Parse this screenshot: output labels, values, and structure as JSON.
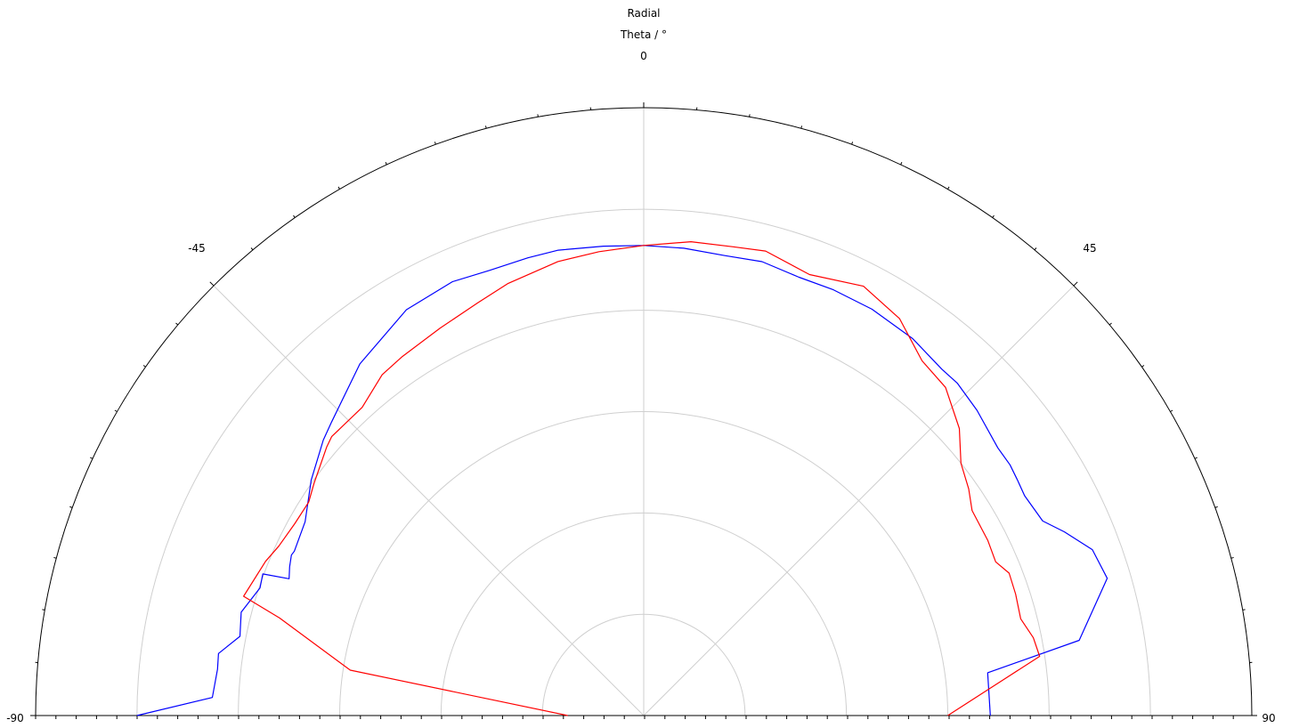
{
  "chart_data": {
    "type": "polar",
    "title": "Radial",
    "angle_label": "Theta / °",
    "theta_range": [
      -90,
      90
    ],
    "theta_major_ticks": [
      -90,
      -45,
      0,
      45,
      90
    ],
    "tick_labels": {
      "n90": "-90",
      "n45": "-45",
      "zero": "0",
      "p45": "45",
      "p90": "90"
    },
    "radial_range": [
      0,
      6
    ],
    "radial_grid_rings": [
      1,
      2,
      3,
      4,
      5
    ],
    "grid": true,
    "legend": "none",
    "series": [
      {
        "color": "#0000ff",
        "theta": [
          -90,
          -87.6,
          -83.8,
          -81.7,
          -78.9,
          -75.6,
          -71.6,
          -69.6,
          -68.9,
          -67.2,
          -65.5,
          -64.8,
          -60.2,
          -54.7,
          -49.3,
          -46.7,
          -38.9,
          -30.3,
          -23.8,
          -19.1,
          -14.2,
          -10.4,
          -4.9,
          0,
          4.9,
          10.0,
          14.6,
          19.5,
          24.0,
          29.3,
          35.5,
          40.7,
          43.3,
          47.5,
          52.9,
          55.6,
          57.7,
          60.0,
          64.0,
          66.4,
          69.7,
          73.5,
          80.2,
          82.9,
          90
        ],
        "r": [
          5.0,
          4.26,
          4.23,
          4.24,
          4.06,
          4.1,
          3.99,
          4.01,
          3.75,
          3.79,
          3.82,
          3.81,
          3.85,
          4.02,
          4.17,
          4.23,
          4.46,
          4.64,
          4.68,
          4.65,
          4.66,
          4.67,
          4.65,
          4.64,
          4.63,
          4.61,
          4.63,
          4.59,
          4.6,
          4.6,
          4.57,
          4.51,
          4.51,
          4.46,
          4.38,
          4.38,
          4.36,
          4.34,
          4.38,
          4.53,
          4.72,
          4.77,
          4.36,
          3.42,
          3.42
        ]
      },
      {
        "color": "#ff0000",
        "theta": [
          -90,
          -81.2,
          -75.0,
          -73.4,
          -67.8,
          -65.1,
          -61.2,
          -57.5,
          -54.8,
          -49.7,
          -48.2,
          -42.4,
          -37.5,
          -33.9,
          -27.7,
          -21.9,
          -17.4,
          -10.7,
          -5.5,
          0,
          5.7,
          10.8,
          14.7,
          20.6,
          27.1,
          32.8,
          38.1,
          42.6,
          47.7,
          51.5,
          55.1,
          58.0,
          63.0,
          66.4,
          68.7,
          71.9,
          75.6,
          78.7,
          81.5,
          90
        ],
        "r": [
          0.75,
          2.93,
          3.72,
          4.12,
          4.03,
          3.97,
          3.93,
          3.92,
          3.98,
          4.1,
          4.13,
          4.12,
          4.24,
          4.27,
          4.32,
          4.39,
          4.47,
          4.56,
          4.6,
          4.64,
          4.7,
          4.71,
          4.74,
          4.65,
          4.76,
          4.66,
          4.45,
          4.4,
          4.21,
          4.0,
          3.91,
          3.82,
          3.81,
          3.79,
          3.87,
          3.86,
          3.84,
          3.92,
          3.95,
          3.0
        ]
      }
    ]
  }
}
